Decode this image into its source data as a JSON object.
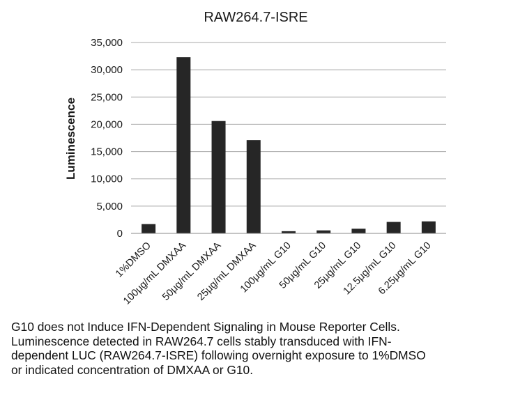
{
  "chart_data": {
    "type": "bar",
    "title": "RAW264.7-ISRE",
    "xlabel": "",
    "ylabel": "Luminescence",
    "categories": [
      "1%DMSO",
      "100μg/mL DMXAA",
      "50μg/mL DMXAA",
      "25μg/mL DMXAA",
      "100μg/mL G10",
      "50μg/mL G10",
      "25μg/mL G10",
      "12.5μg/mL G10",
      "6.25μg/mL G10"
    ],
    "values": [
      1700,
      32300,
      20600,
      17100,
      400,
      550,
      850,
      2100,
      2200
    ],
    "ylim": [
      0,
      35000
    ],
    "yticks": [
      0,
      5000,
      10000,
      15000,
      20000,
      25000,
      30000,
      35000
    ],
    "ytick_labels": [
      "0",
      "5,000",
      "10,000",
      "15,000",
      "20,000",
      "25,000",
      "30,000",
      "35,000"
    ],
    "grid": true,
    "legend": "none",
    "bar_color": "#262626"
  },
  "caption": {
    "lines": [
      "G10 does not Induce IFN-Dependent Signaling in Mouse Reporter Cells.",
      "Luminescence detected in RAW264.7 cells stably transduced with IFN-",
      "dependent LUC (RAW264.7-ISRE) following overnight exposure to 1%DMSO",
      "or indicated concentration of DMXAA or G10."
    ]
  }
}
